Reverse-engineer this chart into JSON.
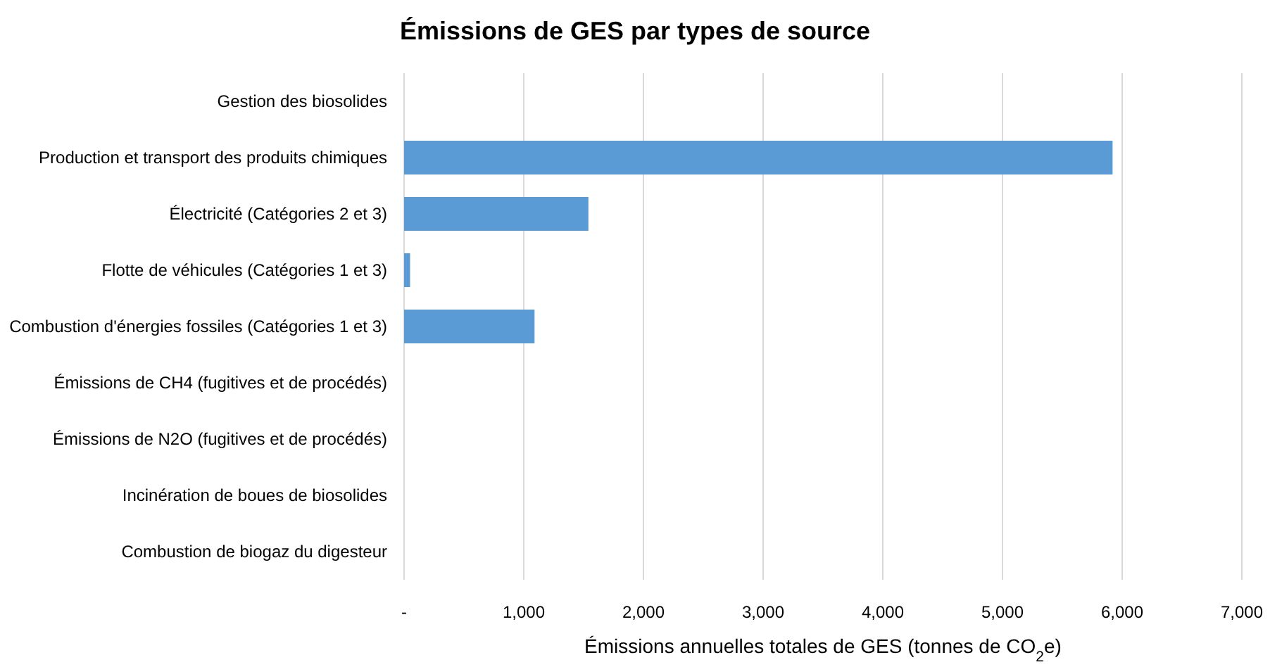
{
  "chart_data": {
    "type": "bar",
    "orientation": "horizontal",
    "title": "Émissions de GES par types de source",
    "xlabel": "Émissions annuelles totales de GES (tonnes de CO$_{2}$e)",
    "categories": [
      "Gestion des biosolides",
      "Production et transport des produits chimiques",
      "Électricité (Catégories 2 et 3)",
      "Flotte de véhicules (Catégories 1 et 3)",
      "Combustion d'énergies fossiles (Catégories 1 et 3)",
      "Émissions de CH4 (fugitives et de procédés)",
      "Émissions de N2O (fugitives et de procédés)",
      "Incinération de boues de biosolides",
      "Combustion de biogaz du digesteur"
    ],
    "values": [
      0,
      5920,
      1540,
      50,
      1090,
      0,
      0,
      0,
      0
    ],
    "color": "#5b9bd5",
    "xlim": [
      0,
      7000
    ],
    "xticks": [
      {
        "value": 0,
        "label": "-"
      },
      {
        "value": 1000,
        "label": "1,000"
      },
      {
        "value": 2000,
        "label": "2,000"
      },
      {
        "value": 3000,
        "label": "3,000"
      },
      {
        "value": 4000,
        "label": "4,000"
      },
      {
        "value": 5000,
        "label": "5,000"
      },
      {
        "value": 6000,
        "label": "6,000"
      },
      {
        "value": 7000,
        "label": "7,000"
      }
    ],
    "grid": "x"
  }
}
